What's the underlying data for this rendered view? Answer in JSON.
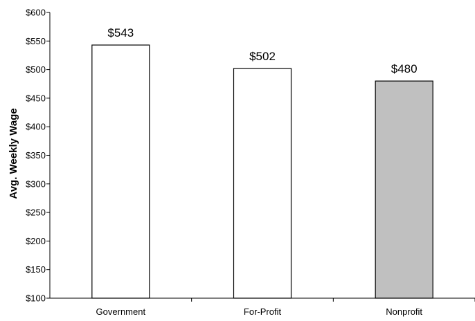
{
  "chart_data": {
    "type": "bar",
    "title": "",
    "xlabel": "",
    "ylabel": "Avg. Weekly Wage",
    "categories": [
      "Government",
      "For-Profit",
      "Nonprofit"
    ],
    "values": [
      543,
      502,
      480
    ],
    "data_labels": [
      "$543",
      "$502",
      "$480"
    ],
    "bar_colors": [
      "#ffffff",
      "#ffffff",
      "#c0c0c0"
    ],
    "ylim": [
      100,
      600
    ],
    "ytick_step": 50,
    "ytick_labels": [
      "$100",
      "$150",
      "$200",
      "$250",
      "$300",
      "$350",
      "$400",
      "$450",
      "$500",
      "$550",
      "$600"
    ],
    "grid": false,
    "legend": "none"
  }
}
